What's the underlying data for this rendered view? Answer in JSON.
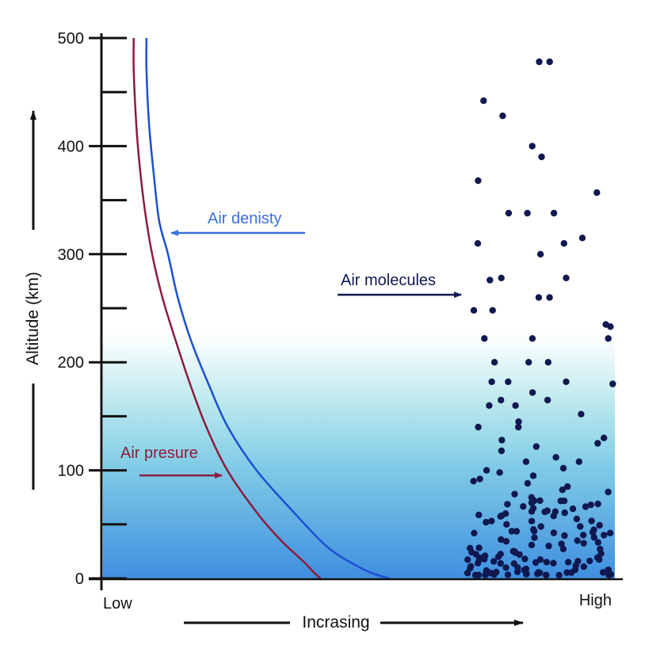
{
  "chart_data": {
    "type": "line",
    "title": "",
    "ylabel": "Altitude (km)",
    "xlabel": "Incrasing",
    "x_low_label": "Low",
    "x_high_label": "High",
    "ylim": [
      0,
      500
    ],
    "y_ticks": [
      0,
      100,
      200,
      300,
      400,
      500
    ],
    "y_minor_ticks": [
      50,
      150,
      250,
      350,
      450
    ],
    "x_scale": "relative (0 = Low, 1 = High)",
    "background": "gradient: dense blue at 0 km fading to white near 230 km",
    "series": [
      {
        "name": "Air presure",
        "color": "#8c1c3c",
        "points": [
          [
            0.06,
            500
          ],
          [
            0.06,
            470
          ],
          [
            0.065,
            420
          ],
          [
            0.072,
            380
          ],
          [
            0.082,
            340
          ],
          [
            0.096,
            300
          ],
          [
            0.116,
            260
          ],
          [
            0.142,
            220
          ],
          [
            0.17,
            180
          ],
          [
            0.202,
            140
          ],
          [
            0.243,
            100
          ],
          [
            0.302,
            60
          ],
          [
            0.348,
            35
          ],
          [
            0.393,
            15
          ],
          [
            0.413,
            5
          ],
          [
            0.425,
            0
          ]
        ]
      },
      {
        "name": "Air denisty",
        "color": "#1d4fd0",
        "points": [
          [
            0.085,
            500
          ],
          [
            0.085,
            470
          ],
          [
            0.09,
            420
          ],
          [
            0.1,
            370
          ],
          [
            0.11,
            330
          ],
          [
            0.127,
            300
          ],
          [
            0.146,
            260
          ],
          [
            0.172,
            220
          ],
          [
            0.206,
            180
          ],
          [
            0.244,
            140
          ],
          [
            0.3,
            100
          ],
          [
            0.375,
            60
          ],
          [
            0.436,
            30
          ],
          [
            0.483,
            15
          ],
          [
            0.525,
            5
          ],
          [
            0.56,
            0
          ]
        ]
      }
    ],
    "molecule_scatter": {
      "name": "Air molecules",
      "color": "#101850",
      "x_range": [
        0.71,
        1.0
      ],
      "description": "dots become denser toward lower altitude",
      "altitudes_km": [
        478,
        478,
        442,
        428,
        400,
        390,
        368,
        357,
        338,
        338,
        338,
        315,
        310,
        310,
        300,
        278,
        278,
        276,
        260,
        260,
        248,
        248,
        235,
        233,
        222,
        222,
        222,
        200,
        200,
        200,
        182,
        182,
        182,
        180,
        172,
        165,
        165,
        160,
        160,
        152,
        145,
        140,
        140,
        130,
        128,
        125,
        122,
        118,
        112,
        108,
        108,
        102,
        100,
        98,
        95,
        92,
        90,
        88,
        85,
        82,
        80,
        78,
        75,
        72,
        70,
        68,
        65,
        62,
        60,
        58,
        55,
        52,
        50,
        48,
        45,
        42,
        40,
        38,
        35,
        32,
        30,
        28,
        25,
        22,
        20,
        18,
        15,
        12,
        10,
        8,
        5
      ]
    },
    "annotations": [
      {
        "text": "Air denisty",
        "color": "#3a6fe0",
        "points_to": "Air denisty"
      },
      {
        "text": "Air presure",
        "color": "#8c1c3c",
        "points_to": "Air presure"
      },
      {
        "text": "Air molecules",
        "color": "#101850",
        "points_to": "Air molecules"
      }
    ]
  }
}
